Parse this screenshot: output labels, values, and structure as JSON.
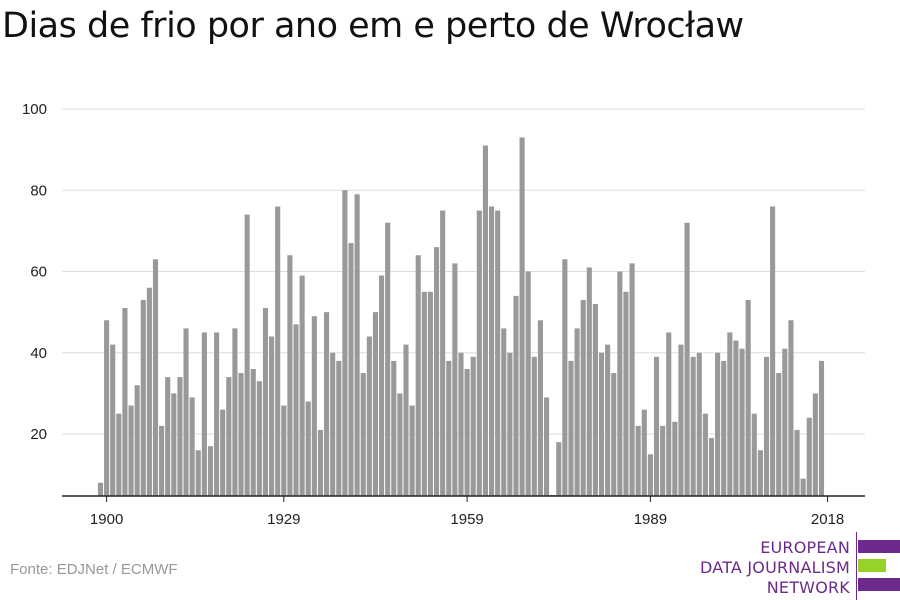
{
  "title": "Dias de frio por ano em e perto de Wrocław",
  "source": "Fonte: EDJNet / ECMWF",
  "logo": {
    "lines": [
      "EUROPEAN",
      "DATA JOURNALISM",
      "NETWORK"
    ],
    "colors": {
      "purple": "#6b2a8c",
      "green": "#95d22a"
    }
  },
  "chart_data": {
    "type": "bar",
    "title": "Dias de frio por ano em e perto de Wrocław",
    "xlabel": "",
    "ylabel": "",
    "ylim": [
      5,
      100
    ],
    "y_ticks": [
      20,
      40,
      60,
      80,
      100
    ],
    "x_ticks": [
      1900,
      1929,
      1959,
      1989,
      2018
    ],
    "grid": true,
    "bar_color": "#999999",
    "x_start": 1899,
    "x_end": 2018,
    "values": [
      8,
      48,
      42,
      25,
      51,
      27,
      32,
      53,
      56,
      63,
      22,
      34,
      30,
      34,
      46,
      29,
      16,
      45,
      17,
      45,
      26,
      34,
      46,
      35,
      74,
      36,
      33,
      51,
      44,
      76,
      27,
      64,
      47,
      59,
      28,
      49,
      21,
      50,
      40,
      38,
      80,
      67,
      79,
      35,
      44,
      50,
      59,
      72,
      38,
      30,
      42,
      27,
      64,
      55,
      55,
      66,
      75,
      38,
      62,
      40,
      36,
      39,
      75,
      91,
      76,
      75,
      46,
      40,
      54,
      93,
      60,
      39,
      48,
      29,
      5,
      18,
      63,
      38,
      46,
      53,
      61,
      52,
      40,
      42,
      35,
      60,
      55,
      62,
      22,
      26,
      15,
      39,
      22,
      45,
      23,
      42,
      72,
      39,
      40,
      25,
      19,
      40,
      38,
      45,
      43,
      41,
      53,
      25,
      16,
      39,
      76,
      35,
      41,
      48,
      21,
      9,
      24,
      30,
      38
    ]
  }
}
